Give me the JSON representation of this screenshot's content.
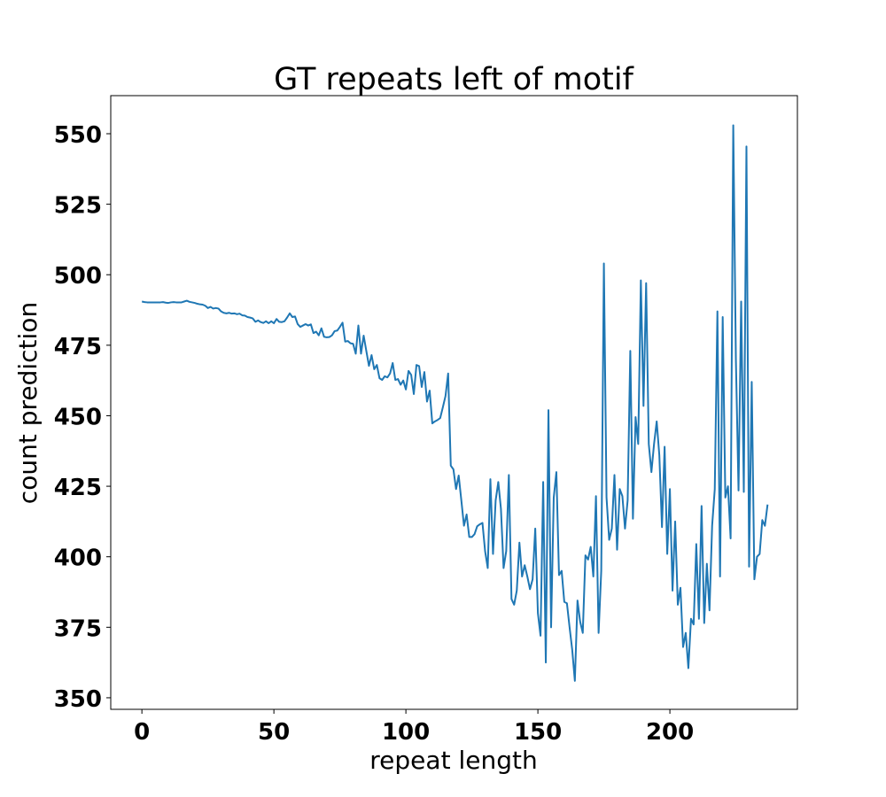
{
  "chart_data": {
    "type": "line",
    "title": "GT repeats left of motif",
    "xlabel": "repeat length",
    "ylabel": "count prediction",
    "xlim": [
      -11.8,
      248.3
    ],
    "ylim": [
      345.9,
      563.5
    ],
    "xticks": [
      0,
      50,
      100,
      150,
      200
    ],
    "xtick_labels": [
      "0",
      "50",
      "100",
      "150",
      "200"
    ],
    "yticks": [
      350,
      375,
      400,
      425,
      450,
      475,
      500,
      525,
      550
    ],
    "ytick_labels": [
      "350",
      "375",
      "400",
      "425",
      "450",
      "475",
      "500",
      "525",
      "550"
    ],
    "grid": false,
    "series": [
      {
        "name": "count prediction",
        "color": "#1f77b4",
        "x_start": 0,
        "x_step": 1,
        "values": [
          490.5,
          490.3,
          490.2,
          490.2,
          490.2,
          490.2,
          490.2,
          490.2,
          490.3,
          490.1,
          490.0,
          490.2,
          490.3,
          490.2,
          490.2,
          490.2,
          490.5,
          490.8,
          490.4,
          490.2,
          490.0,
          489.7,
          489.5,
          489.4,
          489.0,
          488.2,
          488.6,
          488.0,
          488.2,
          488.0,
          487.0,
          486.5,
          486.3,
          486.5,
          486.2,
          486.3,
          486.0,
          486.2,
          485.6,
          485.5,
          485.0,
          484.8,
          484.5,
          483.3,
          483.8,
          483.2,
          482.9,
          483.5,
          482.8,
          483.5,
          482.8,
          484.3,
          483.3,
          483.2,
          483.5,
          484.8,
          486.3,
          485.0,
          485.2,
          482.5,
          481.5,
          482.0,
          482.5,
          482.0,
          482.4,
          479.3,
          479.8,
          478.5,
          481.0,
          478.0,
          477.8,
          477.9,
          478.5,
          480.0,
          480.2,
          481.5,
          483.0,
          476.3,
          476.5,
          475.7,
          475.5,
          472.0,
          482.0,
          472.0,
          478.4,
          473.0,
          467.7,
          471.5,
          466.5,
          468.0,
          463.3,
          462.7,
          464.0,
          463.6,
          465.0,
          468.7,
          462.7,
          463.0,
          461.0,
          462.5,
          459.3,
          465.9,
          464.5,
          457.7,
          468.0,
          467.6,
          460.2,
          465.5,
          455.0,
          458.9,
          447.3,
          448.0,
          448.5,
          449.2,
          453.0,
          457.0,
          465.0,
          432.3,
          431.0,
          424.0,
          428.8,
          420.0,
          411.0,
          415.0,
          407.0,
          407.0,
          408.0,
          410.8,
          411.5,
          412.0,
          402.0,
          396.0,
          427.5,
          401.0,
          420.0,
          426.5,
          417.0,
          396.0,
          402.0,
          429.0,
          385.0,
          383.0,
          388.0,
          405.0,
          393.0,
          397.0,
          393.0,
          388.5,
          392.0,
          410.0,
          380.0,
          372.0,
          426.5,
          362.5,
          452.0,
          375.0,
          421.0,
          430.0,
          393.5,
          395.0,
          384.0,
          383.5,
          375.0,
          367.0,
          356.0,
          384.5,
          377.0,
          373.0,
          400.5,
          399.0,
          403.5,
          393.0,
          421.5,
          373.0,
          395.0,
          504.0,
          421.0,
          406.0,
          410.0,
          429.0,
          402.5,
          424.0,
          421.5,
          410.0,
          420.0,
          473.0,
          413.5,
          449.5,
          440.0,
          498.0,
          453.5,
          497.0,
          440.0,
          430.0,
          440.0,
          448.0,
          436.0,
          410.5,
          439.0,
          401.0,
          424.0,
          388.0,
          412.5,
          383.0,
          389.0,
          368.0,
          373.0,
          360.5,
          378.0,
          376.0,
          404.5,
          378.0,
          418.0,
          376.5,
          397.5,
          381.0,
          411.0,
          424.0,
          487.0,
          393.0,
          485.0,
          421.0,
          425.0,
          406.5,
          553.0,
          470.0,
          423.5,
          490.5,
          423.0,
          545.5,
          396.5,
          462.0,
          392.0,
          400.0,
          401.0,
          413.0,
          411.0,
          418.5
        ]
      }
    ]
  }
}
